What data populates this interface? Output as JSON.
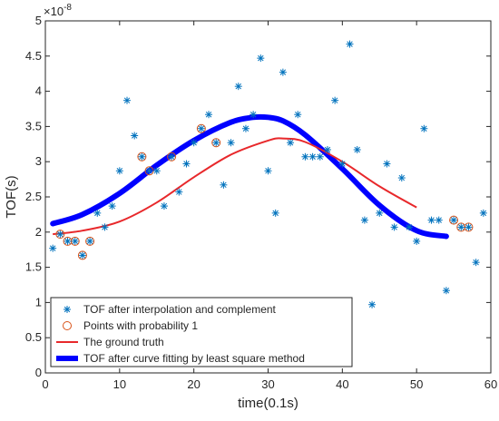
{
  "chart_data": {
    "type": "scatter",
    "xlabel": "time(0.1s)",
    "ylabel": "TOF(s)",
    "y_exponent_label": "×10",
    "y_exponent_power": "-8",
    "y_multiplier": 1e-08,
    "xlim": [
      0,
      60
    ],
    "ylim": [
      0,
      5
    ],
    "x_ticks": [
      0,
      10,
      20,
      30,
      40,
      50,
      60
    ],
    "y_ticks": [
      0,
      0.5,
      1,
      1.5,
      2,
      2.5,
      3,
      3.5,
      4,
      4.5,
      5
    ],
    "x_tick_labels": [
      "0",
      "10",
      "20",
      "30",
      "40",
      "50",
      "60"
    ],
    "y_tick_labels": [
      "0",
      "0.5",
      "1",
      "1.5",
      "2",
      "2.5",
      "3",
      "3.5",
      "4",
      "4.5",
      "5"
    ],
    "grid": false,
    "legend_position": "bottom-left",
    "series": [
      {
        "name": "TOF after interpolation and complement",
        "marker": "asterisk",
        "color": "#0072BD",
        "x": [
          1,
          2,
          3,
          4,
          5,
          6,
          7,
          8,
          9,
          10,
          11,
          12,
          13,
          14,
          15,
          16,
          17,
          18,
          19,
          20,
          21,
          22,
          23,
          24,
          25,
          26,
          27,
          28,
          29,
          30,
          31,
          32,
          33,
          34,
          35,
          36,
          37,
          38,
          39,
          40,
          41,
          42,
          43,
          44,
          45,
          46,
          47,
          48,
          49,
          50,
          51,
          52,
          53,
          54,
          55,
          56,
          57,
          58,
          59
        ],
        "y": [
          1.77,
          1.97,
          1.87,
          1.87,
          1.67,
          1.87,
          2.27,
          2.07,
          2.37,
          2.87,
          3.87,
          3.37,
          3.07,
          2.87,
          2.87,
          2.37,
          3.07,
          2.57,
          2.97,
          3.27,
          3.47,
          3.67,
          3.27,
          2.67,
          3.27,
          4.07,
          3.47,
          3.67,
          4.47,
          2.87,
          2.27,
          4.27,
          3.27,
          3.67,
          3.07,
          3.07,
          3.07,
          3.17,
          3.87,
          2.97,
          4.67,
          3.17,
          2.17,
          0.97,
          2.27,
          2.97,
          2.07,
          2.77,
          2.07,
          1.87,
          3.47,
          2.17,
          2.17,
          1.17,
          2.17,
          2.07,
          2.07,
          1.57,
          2.27
        ]
      },
      {
        "name": "Points with probability 1",
        "marker": "circle",
        "color": "#D95319",
        "x": [
          2,
          3,
          4,
          5,
          6,
          13,
          14,
          17,
          21,
          23,
          55,
          56,
          57
        ],
        "y": [
          1.97,
          1.87,
          1.87,
          1.67,
          1.87,
          3.07,
          2.87,
          3.07,
          3.47,
          3.27,
          2.17,
          2.07,
          2.07
        ]
      },
      {
        "name": "The ground truth",
        "type": "line",
        "color": "#E8282B",
        "x": [
          1,
          5,
          10,
          15,
          20,
          25,
          30,
          32,
          35,
          40,
          45,
          50
        ],
        "y": [
          1.97,
          2.02,
          2.15,
          2.42,
          2.78,
          3.1,
          3.3,
          3.33,
          3.28,
          3.0,
          2.65,
          2.35
        ]
      },
      {
        "name": "TOF after curve fitting by least square method",
        "type": "line",
        "color": "#0000FF",
        "x": [
          1,
          5,
          10,
          15,
          20,
          25,
          28,
          30,
          32,
          35,
          40,
          45,
          50,
          54
        ],
        "y": [
          2.12,
          2.25,
          2.55,
          2.95,
          3.3,
          3.56,
          3.63,
          3.63,
          3.58,
          3.38,
          2.9,
          2.38,
          2.02,
          1.94
        ]
      }
    ]
  }
}
